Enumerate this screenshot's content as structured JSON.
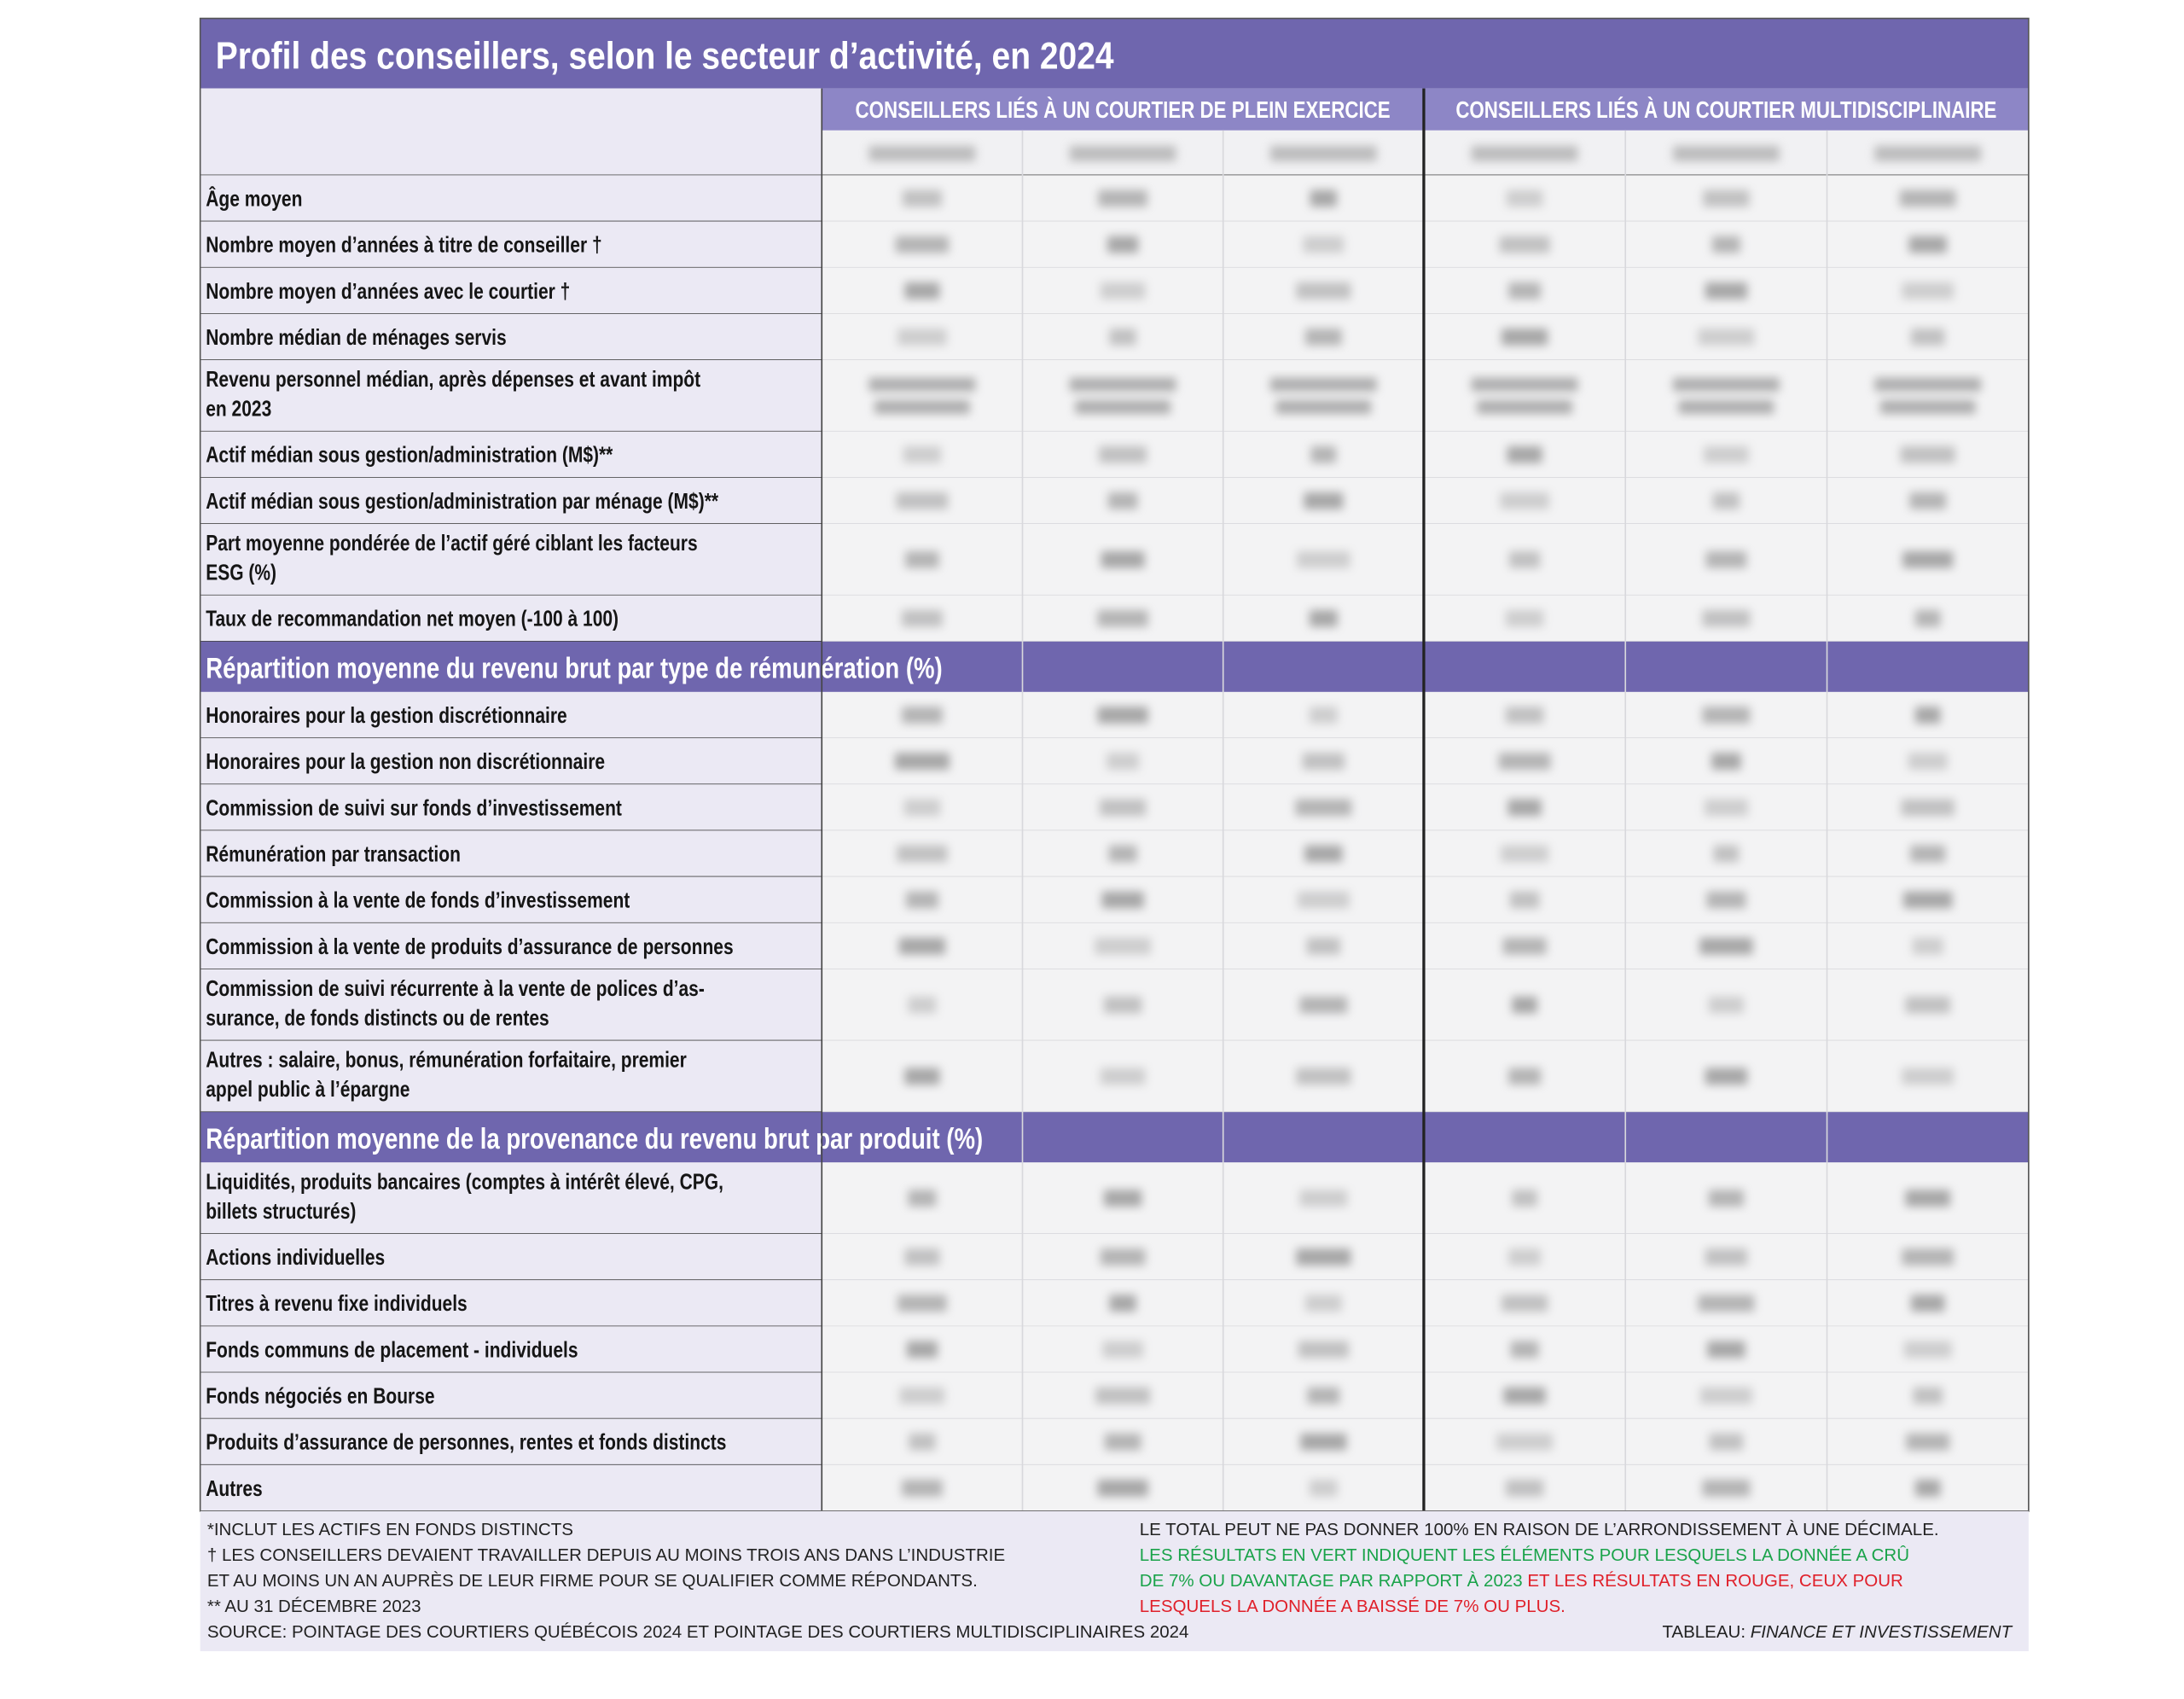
{
  "title": "Profil des conseillers, selon le secteur d’activité, en 2024",
  "table": {
    "groups": [
      "CONSEILLERS LIÉS À UN COURTIER DE PLEIN EXERCICE",
      "CONSEILLERS LIÉS À UN COURTIER MULTIDISCIPLINAIRE"
    ],
    "blocks": [
      {
        "rows": [
          {
            "label": [
              "Âge moyen"
            ]
          },
          {
            "label": [
              "Nombre moyen d’années à titre de conseiller †"
            ]
          },
          {
            "label": [
              "Nombre moyen d’années avec le courtier †"
            ]
          },
          {
            "label": [
              "Nombre médian de ménages servis"
            ]
          },
          {
            "label": [
              "Revenu personnel médian, après dépenses et avant impôt",
              "en 2023"
            ]
          },
          {
            "label": [
              "Actif médian sous gestion/administration (M$)**"
            ]
          },
          {
            "label": [
              "Actif médian sous gestion/administration par ménage (M$)**"
            ]
          },
          {
            "label": [
              "Part moyenne pondérée de l’actif géré ciblant les facteurs",
              "ESG (%)"
            ]
          },
          {
            "label": [
              "Taux de recommandation net  moyen (-100 à 100)"
            ]
          }
        ]
      },
      {
        "heading": "Répartition moyenne du revenu brut par type de rémunération (%)",
        "rows": [
          {
            "label": [
              "Honoraires pour la gestion discrétionnaire"
            ]
          },
          {
            "label": [
              "Honoraires pour la gestion non discrétionnaire"
            ]
          },
          {
            "label": [
              "Commission de suivi sur fonds d’investissement"
            ]
          },
          {
            "label": [
              "Rémunération par transaction"
            ]
          },
          {
            "label": [
              "Commission à la vente de fonds d’investissement"
            ]
          },
          {
            "label": [
              "Commission à la vente de produits d’assurance de personnes"
            ]
          },
          {
            "label": [
              "Commission de suivi récurrente à la vente de polices d’as-",
              "surance, de fonds distincts ou de rentes"
            ]
          },
          {
            "label": [
              "Autres : salaire, bonus, rémunération forfaitaire, premier",
              "appel public à l’épargne"
            ]
          }
        ]
      },
      {
        "heading": "Répartition moyenne de la provenance du revenu brut par produit (%)",
        "rows": [
          {
            "label": [
              "Liquidités, produits bancaires (comptes à intérêt élevé, CPG,",
              "billets structurés)"
            ]
          },
          {
            "label": [
              "Actions individuelles"
            ]
          },
          {
            "label": [
              "Titres à revenu fixe individuels"
            ]
          },
          {
            "label": [
              "Fonds communs de placement - individuels"
            ]
          },
          {
            "label": [
              "Fonds négociés en Bourse"
            ]
          },
          {
            "label": [
              "Produits d’assurance de personnes, rentes et fonds distincts"
            ]
          },
          {
            "label": [
              "Autres"
            ]
          }
        ]
      }
    ]
  },
  "footer": {
    "notes": [
      "*INCLUT LES ACTIFS EN FONDS DISTINCTS",
      "† LES CONSEILLERS DEVAIENT TRAVAILLER DEPUIS AU MOINS TROIS ANS DANS L’INDUSTRIE",
      "ET AU MOINS UN AN AUPRÈS DE LEUR FIRME POUR SE QUALIFIER COMME RÉPONDANTS.",
      "** AU 31 DÉCEMBRE 2023",
      "SOURCE: POINTAGE DES COURTIERS QUÉBÉCOIS 2024 ET POINTAGE DES COURTIERS MULTIDISCIPLINAIRES 2024"
    ],
    "total_note": "LE TOTAL PEUT NE PAS DONNER 100% EN RAISON DE L’ARRONDISSEMENT À UNE DÉCIMALE.",
    "green_note": [
      "LES RÉSULTATS EN VERT INDIQUENT LES ÉLÉMENTS POUR LESQUELS LA DONNÉE A CRÛ",
      "DE 7% OU DAVANTAGE PAR RAPPORT À 2023"
    ],
    "red_note": [
      " ET LES RÉSULTATS EN ROUGE, CEUX POUR",
      "LESQUELS LA DONNÉE A BAISSÉ DE 7% OU PLUS."
    ],
    "credit_prefix": "TABLEAU: ",
    "credit_name": "FINANCE ET INVESTISSEMENT"
  }
}
